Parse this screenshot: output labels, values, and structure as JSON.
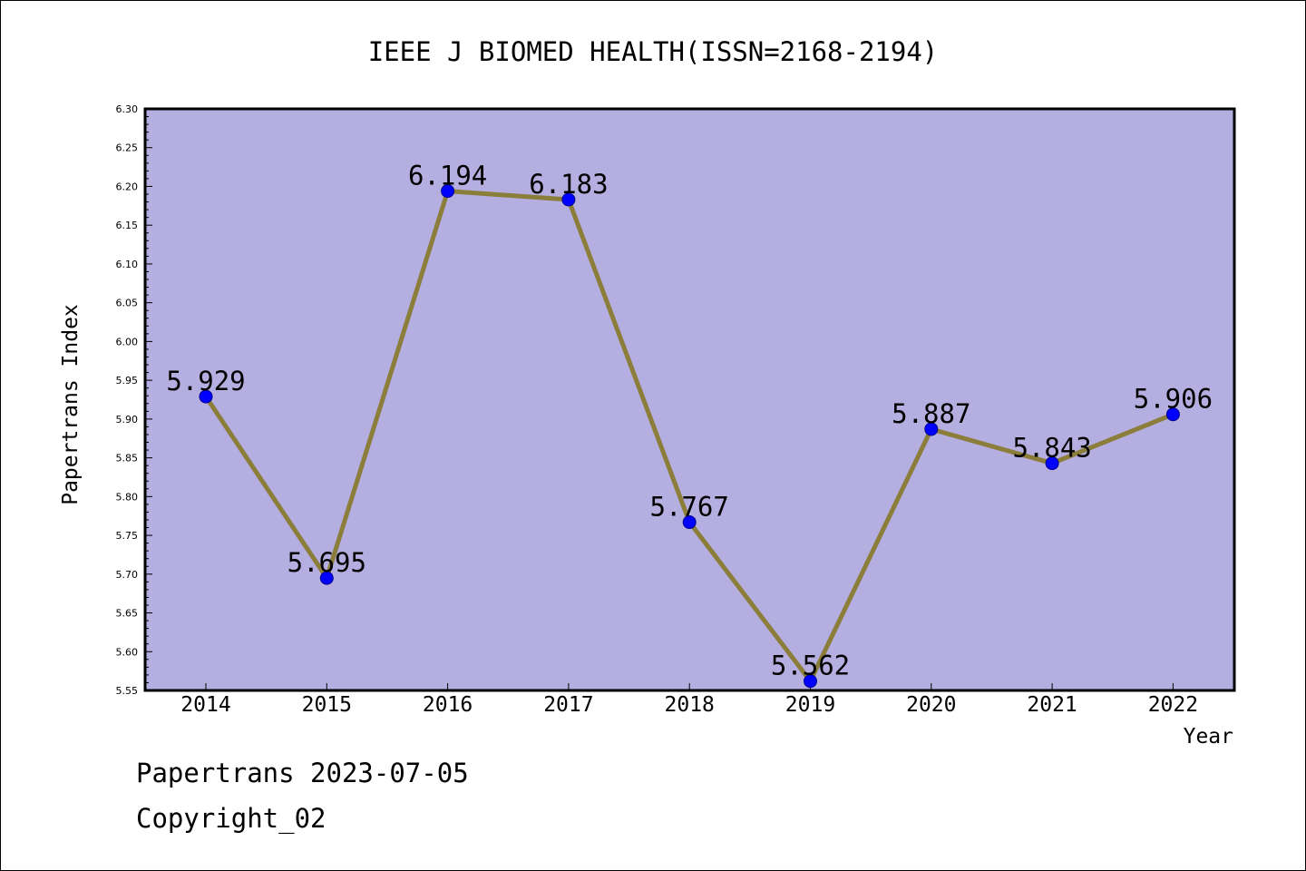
{
  "chart_data": {
    "type": "line",
    "title": "IEEE J BIOMED HEALTH(ISSN=2168-2194)",
    "xlabel": "Year",
    "ylabel": "Papertrans Index",
    "categories": [
      "2014",
      "2015",
      "2016",
      "2017",
      "2018",
      "2019",
      "2020",
      "2021",
      "2022"
    ],
    "values": [
      5.929,
      5.695,
      6.194,
      6.183,
      5.767,
      5.562,
      5.887,
      5.843,
      5.906
    ],
    "data_labels": [
      "5.929",
      "5.695",
      "6.194",
      "6.183",
      "5.767",
      "5.562",
      "5.887",
      "5.843",
      "5.906"
    ],
    "ylim": [
      5.55,
      6.3
    ],
    "yticks": [
      "5.55",
      "5.60",
      "5.65",
      "5.70",
      "5.75",
      "5.80",
      "5.85",
      "5.90",
      "5.95",
      "6.00",
      "6.05",
      "6.10",
      "6.15",
      "6.20",
      "6.25",
      "6.30"
    ],
    "grid": false,
    "colors": {
      "plot_background": "#b5aee0",
      "line": "#8b7d3a",
      "marker_fill": "#0000ff",
      "marker_edge": "#00008b"
    }
  },
  "footer": {
    "date_line": "Papertrans 2023-07-05",
    "copyright_line": "Copyright_02"
  }
}
